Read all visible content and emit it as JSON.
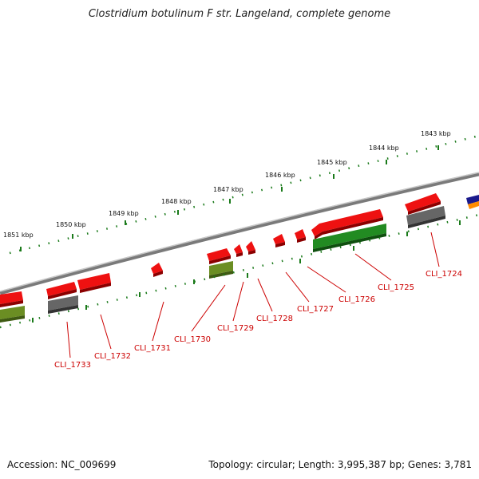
{
  "title": "Clostridium botulinum F str. Langeland, complete genome",
  "footer": {
    "accession": "Accession: NC_009699",
    "summary": "Topology: circular; Length: 3,995,387 bp; Genes: 3,781"
  },
  "ruler_labels": [
    "1851 kbp",
    "1850 kbp",
    "1849 kbp",
    "1848 kbp",
    "1847 kbp",
    "1846 kbp",
    "1845 kbp",
    "1844 kbp",
    "1843 kbp"
  ],
  "gene_labels": [
    "CLI_1733",
    "CLI_1732",
    "CLI_1731",
    "CLI_1730",
    "CLI_1729",
    "CLI_1728",
    "CLI_1727",
    "CLI_1726",
    "CLI_1725",
    "CLI_1724"
  ],
  "colors": {
    "gene": "#ee1111",
    "rrna_green": "#228b22",
    "olive": "#6b8e23",
    "gray_feature": "#666666",
    "backbone": "#888888",
    "ruler": "#1a7a1a",
    "label": "#cc0000"
  }
}
